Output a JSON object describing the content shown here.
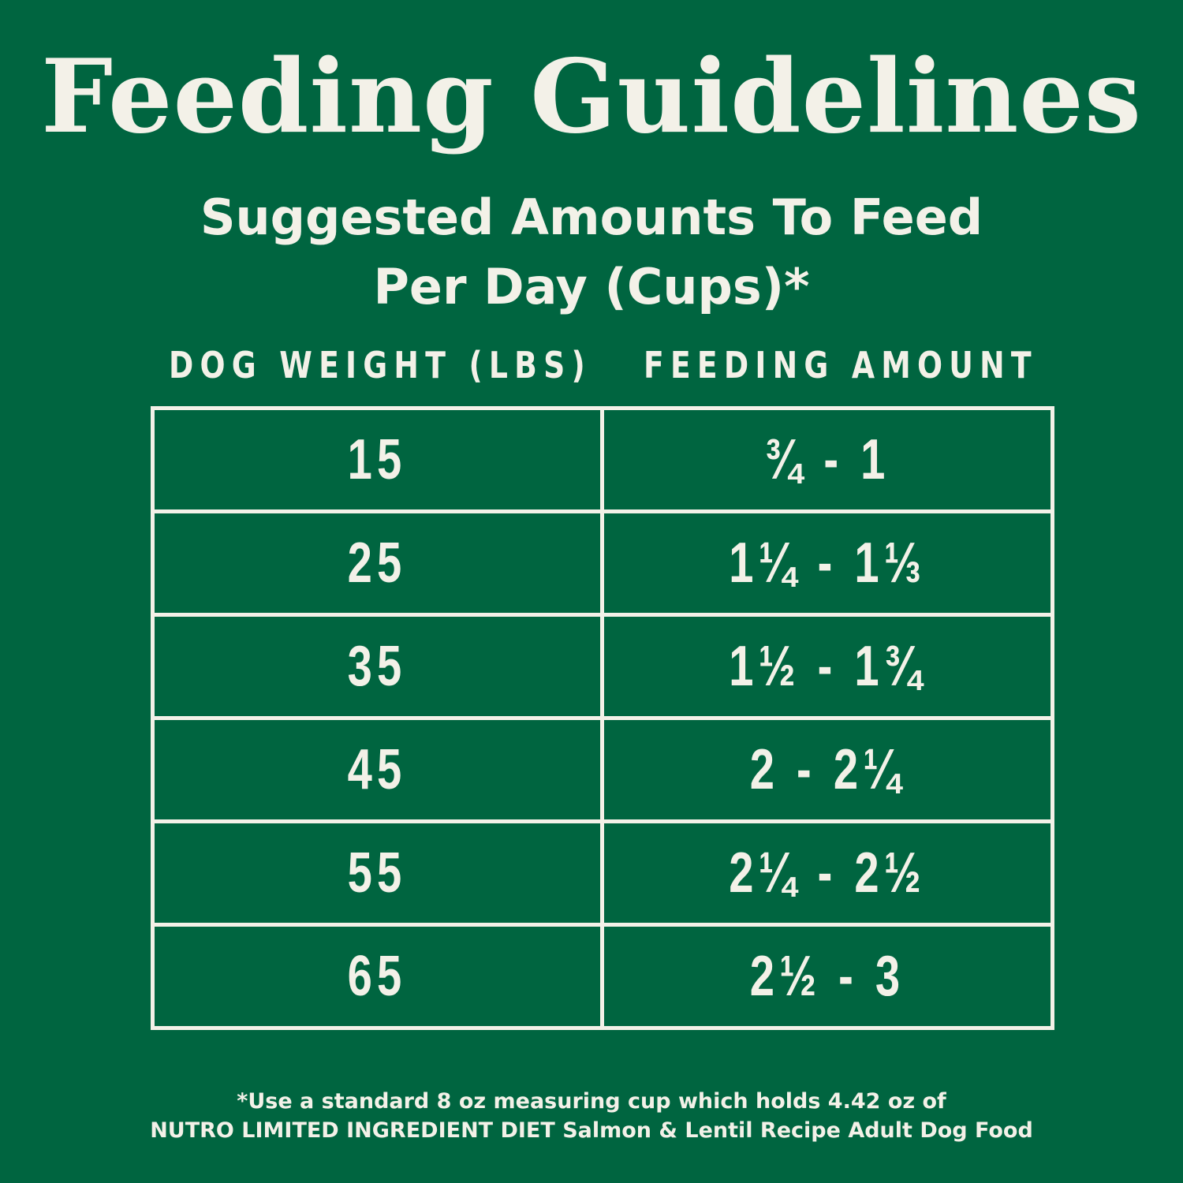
{
  "title": "Feeding Guidelines",
  "subtitle": {
    "line1": "Suggested Amounts To Feed",
    "line2": "Per Day (Cups)*"
  },
  "table": {
    "headers": {
      "weight": "DOG WEIGHT (LBS)",
      "amount": "FEEDING AMOUNT"
    },
    "rows": [
      {
        "weight": "15",
        "amount": "¾ - 1"
      },
      {
        "weight": "25",
        "amount": "1¼ - 1⅓"
      },
      {
        "weight": "35",
        "amount": "1½ - 1¾"
      },
      {
        "weight": "45",
        "amount": "2 - 2¼"
      },
      {
        "weight": "55",
        "amount": "2¼ - 2½"
      },
      {
        "weight": "65",
        "amount": "2½ - 3"
      }
    ]
  },
  "footnote": {
    "line1": "*Use a standard 8 oz measuring cup which holds 4.42 oz of",
    "line2": "NUTRO LIMITED INGREDIENT DIET Salmon & Lentil Recipe Adult Dog Food"
  },
  "colors": {
    "background": "#006540",
    "text": "#f3f1e8"
  }
}
